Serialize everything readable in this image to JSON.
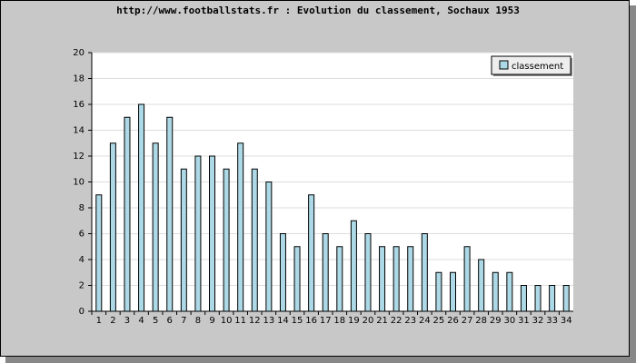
{
  "chart_data": {
    "type": "bar",
    "title": "http://www.footballstats.fr : Evolution du classement, Sochaux 1953",
    "categories": [
      "1",
      "2",
      "3",
      "4",
      "5",
      "6",
      "7",
      "8",
      "9",
      "10",
      "11",
      "12",
      "13",
      "14",
      "15",
      "16",
      "17",
      "18",
      "19",
      "20",
      "21",
      "22",
      "23",
      "24",
      "25",
      "26",
      "27",
      "28",
      "29",
      "30",
      "31",
      "32",
      "33",
      "34"
    ],
    "series": [
      {
        "name": "classement",
        "color": "#add8e6",
        "values": [
          9,
          13,
          15,
          16,
          13,
          15,
          11,
          12,
          12,
          11,
          13,
          11,
          10,
          6,
          5,
          9,
          6,
          5,
          7,
          6,
          5,
          5,
          5,
          6,
          3,
          3,
          5,
          4,
          3,
          3,
          2,
          2,
          2,
          2
        ]
      }
    ],
    "ylim": [
      0,
      20
    ],
    "yticks": [
      0,
      2,
      4,
      6,
      8,
      10,
      12,
      14,
      16,
      18,
      20
    ],
    "grid": true,
    "legend": "upper right"
  }
}
